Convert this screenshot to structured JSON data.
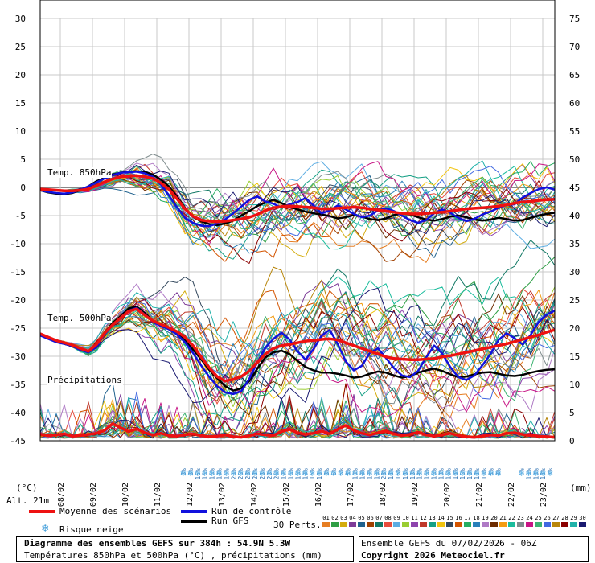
{
  "chart_data": {
    "type": "line",
    "title": "Diagramme des ensembles GEFS sur 384h : 54.9N 5.3W",
    "subtitle": "Températures 850hPa et 500hPa (°C) , précipitations (mm)",
    "run_info": "Ensemble GEFS du 07/02/2026 - 06Z",
    "copyright": "Copyright 2026 Meteociel.fr",
    "altitude": "Alt. 21m",
    "left_axis_unit": "(°C)",
    "right_axis_unit": "(mm)",
    "left_ticks": [
      30,
      25,
      20,
      15,
      10,
      5,
      0,
      -5,
      -10,
      -15,
      -20,
      -25,
      -30,
      -35,
      -40,
      -45
    ],
    "right_ticks": [
      75,
      70,
      65,
      60,
      55,
      50,
      45,
      40,
      35,
      30,
      25,
      20,
      15,
      10,
      5,
      0
    ],
    "ylim": [
      -45,
      30
    ],
    "x_labels": [
      "08/02",
      "09/02",
      "10/02",
      "11/02",
      "12/02",
      "13/02",
      "14/02",
      "15/02",
      "16/02",
      "17/02",
      "18/02",
      "19/02",
      "20/02",
      "21/02",
      "22/02",
      "23/02"
    ],
    "section_labels": {
      "t850": "Temp. 850hPa",
      "t500": "Temp. 500hPa",
      "precip": "Précipitations"
    },
    "x_hours_step": 6,
    "t850_mean": [
      -0.3,
      -0.4,
      -0.5,
      -0.6,
      -0.6,
      -0.5,
      -0.3,
      0.3,
      1.0,
      1.5,
      1.9,
      2.0,
      2.1,
      1.9,
      1.6,
      0.8,
      -0.3,
      -2.0,
      -3.8,
      -5.1,
      -5.8,
      -6.0,
      -6.1,
      -6.0,
      -5.8,
      -5.6,
      -5.3,
      -4.8,
      -4.1,
      -3.6,
      -3.4,
      -3.3,
      -3.4,
      -3.5,
      -3.6,
      -3.8,
      -3.8,
      -3.7,
      -3.6,
      -3.5,
      -3.6,
      -3.8,
      -4.0,
      -4.2,
      -4.4,
      -4.6,
      -4.7,
      -4.7,
      -4.6,
      -4.5,
      -4.4,
      -4.2,
      -4.0,
      -3.8,
      -3.7,
      -3.6,
      -3.5,
      -3.3,
      -3.1,
      -2.8,
      -2.6,
      -2.5,
      -2.3,
      -2.2,
      -2.1
    ],
    "t850_control": [
      -0.5,
      -0.8,
      -1.0,
      -1.1,
      -0.9,
      -0.4,
      0.2,
      0.9,
      1.6,
      2.2,
      2.6,
      2.7,
      2.8,
      2.5,
      1.9,
      0.5,
      -1.4,
      -3.5,
      -5.4,
      -6.3,
      -6.8,
      -6.9,
      -6.4,
      -5.7,
      -4.6,
      -3.4,
      -2.2,
      -1.6,
      -2.5,
      -2.9,
      -3.6,
      -3.0,
      -2.6,
      -1.9,
      -3.2,
      -4.6,
      -4.1,
      -3.2,
      -3.9,
      -4.7,
      -5.3,
      -5.0,
      -4.1,
      -3.7,
      -4.2,
      -5.0,
      -5.8,
      -6.3,
      -5.8,
      -4.6,
      -3.9,
      -4.5,
      -5.4,
      -6.0,
      -5.6,
      -4.8,
      -4.3,
      -3.6,
      -3.1,
      -3.0,
      -1.8,
      -1.0,
      -0.3,
      0.0,
      -0.4
    ],
    "t850_gfs": [
      -0.5,
      -0.9,
      -1.1,
      -1.2,
      -1.0,
      -0.5,
      0.2,
      1.1,
      1.7,
      2.3,
      2.6,
      2.8,
      2.9,
      2.7,
      2.3,
      1.4,
      0.2,
      -1.6,
      -3.6,
      -5.2,
      -6.0,
      -6.5,
      -6.7,
      -6.4,
      -5.9,
      -5.0,
      -4.2,
      -3.3,
      -2.7,
      -2.2,
      -2.8,
      -3.4,
      -3.9,
      -4.3,
      -4.6,
      -4.8,
      -5.1,
      -5.5,
      -5.3,
      -4.9,
      -5.2,
      -5.6,
      -5.8,
      -5.5,
      -4.9,
      -4.6,
      -4.8,
      -5.3,
      -5.7,
      -5.9,
      -5.6,
      -5.2,
      -5.0,
      -5.3,
      -5.7,
      -5.9,
      -5.7,
      -5.4,
      -5.6,
      -5.9,
      -5.8,
      -5.4,
      -5.0,
      -4.7,
      -4.5
    ],
    "t500_mean": [
      -26.0,
      -26.6,
      -27.2,
      -27.6,
      -28.0,
      -28.6,
      -29.1,
      -27.9,
      -25.9,
      -24.4,
      -23.2,
      -22.0,
      -21.6,
      -22.7,
      -23.7,
      -24.3,
      -24.9,
      -25.6,
      -26.6,
      -28.1,
      -30.1,
      -32.0,
      -33.6,
      -34.4,
      -34.1,
      -33.6,
      -32.6,
      -31.1,
      -29.6,
      -28.6,
      -28.1,
      -27.9,
      -27.6,
      -27.3,
      -27.2,
      -27.0,
      -26.9,
      -27.1,
      -27.6,
      -28.1,
      -28.6,
      -29.1,
      -29.6,
      -30.1,
      -30.4,
      -30.5,
      -30.6,
      -30.6,
      -30.5,
      -30.4,
      -30.1,
      -29.9,
      -29.6,
      -29.3,
      -29.0,
      -28.7,
      -28.4,
      -28.1,
      -27.8,
      -27.4,
      -27.0,
      -26.6,
      -26.2,
      -25.7,
      -25.3
    ],
    "t500_control": [
      -26.3,
      -26.9,
      -27.5,
      -27.8,
      -28.2,
      -28.9,
      -29.3,
      -28.3,
      -26.1,
      -24.5,
      -23.1,
      -21.9,
      -21.4,
      -22.6,
      -23.9,
      -24.6,
      -25.2,
      -26.1,
      -27.5,
      -29.4,
      -31.6,
      -33.6,
      -35.3,
      -36.4,
      -36.7,
      -36.2,
      -34.0,
      -31.1,
      -28.5,
      -26.9,
      -25.8,
      -27.0,
      -29.1,
      -30.6,
      -28.7,
      -26.3,
      -25.3,
      -27.8,
      -30.9,
      -32.5,
      -31.7,
      -29.4,
      -28.6,
      -30.3,
      -32.1,
      -33.4,
      -33.7,
      -32.6,
      -30.2,
      -28.1,
      -29.5,
      -31.9,
      -33.7,
      -34.2,
      -33.4,
      -31.6,
      -29.6,
      -27.1,
      -25.9,
      -26.8,
      -27.9,
      -26.2,
      -23.9,
      -22.6,
      -21.9
    ],
    "t500_gfs": [
      -26.2,
      -26.8,
      -27.3,
      -27.8,
      -28.2,
      -28.8,
      -29.3,
      -28.1,
      -25.8,
      -24.1,
      -22.9,
      -21.5,
      -21.2,
      -22.3,
      -23.7,
      -24.5,
      -25.1,
      -25.9,
      -27.2,
      -28.8,
      -30.5,
      -32.4,
      -33.9,
      -35.3,
      -36.1,
      -35.7,
      -34.4,
      -32.2,
      -30.2,
      -29.3,
      -29.0,
      -29.6,
      -30.8,
      -31.9,
      -32.5,
      -32.9,
      -32.9,
      -33.1,
      -33.4,
      -33.8,
      -33.6,
      -33.1,
      -32.7,
      -32.9,
      -33.4,
      -33.8,
      -33.5,
      -32.9,
      -32.5,
      -32.2,
      -32.6,
      -33.2,
      -33.7,
      -33.6,
      -33.2,
      -32.9,
      -32.8,
      -33.1,
      -33.4,
      -33.5,
      -33.3,
      -32.9,
      -32.6,
      -32.4,
      -32.3
    ],
    "precip_mean_mm": [
      0.7,
      0.5,
      0.6,
      0.8,
      0.4,
      0.5,
      0.7,
      0.9,
      1.4,
      2.6,
      1.9,
      1.2,
      1.7,
      1.0,
      0.6,
      0.9,
      0.5,
      0.4,
      0.6,
      0.8,
      0.5,
      0.3,
      0.4,
      0.6,
      0.3,
      0.2,
      0.5,
      0.8,
      0.6,
      0.5,
      1.2,
      1.6,
      1.0,
      0.7,
      0.9,
      1.3,
      0.8,
      1.6,
      2.3,
      1.4,
      0.9,
      0.6,
      1.0,
      1.3,
      0.8,
      0.5,
      0.7,
      1.1,
      0.6,
      0.4,
      0.6,
      0.9,
      0.5,
      0.3,
      0.2,
      0.4,
      0.6,
      0.5,
      0.9,
      1.0,
      0.7,
      0.5,
      0.4,
      0.3,
      0.2
    ],
    "snow_risk": {
      "label": "Risque neige",
      "percent_labels": [
        "3%",
        "3%",
        "16%",
        "16%",
        "16%",
        "13%",
        "16%",
        "23%",
        "26%",
        "23%",
        "23%",
        "23%",
        "23%",
        "26%",
        "19%",
        "16%",
        "16%",
        "10%",
        "16%",
        "10%",
        "3%",
        "6%",
        "6%",
        "3%",
        "10%",
        "10%",
        "10%",
        "10%",
        "23%",
        "13%",
        "16%",
        "13%",
        "13%",
        "13%",
        "16%",
        "16%",
        "13%",
        "16%",
        "13%",
        "16%",
        "10%",
        "13%",
        "10%",
        "3%",
        "3%",
        "6%",
        "10%",
        "13%",
        "13%",
        "3%"
      ],
      "gap_after_index": 45
    },
    "series": [
      {
        "name": "Moyenne des scénarios",
        "color": "#ee1111"
      },
      {
        "name": "Run de contrôle",
        "color": "#1111dd"
      },
      {
        "name": "Run GFS",
        "color": "#000000"
      }
    ],
    "perturbations": {
      "label": "30 Perts.",
      "numbers": [
        "01",
        "02",
        "03",
        "04",
        "05",
        "06",
        "07",
        "08",
        "09",
        "10",
        "11",
        "12",
        "13",
        "14",
        "15",
        "16",
        "17",
        "18",
        "19",
        "20",
        "21",
        "22",
        "23",
        "24",
        "25",
        "26",
        "27",
        "28",
        "29",
        "30"
      ],
      "colors": [
        "#e67e22",
        "#2e9e44",
        "#d4ac0d",
        "#7d3c98",
        "#1f618d",
        "#a04000",
        "#117864",
        "#e74c3c",
        "#5dade2",
        "#9acd32",
        "#8e44ad",
        "#c0392b",
        "#16a085",
        "#f1c40f",
        "#34495e",
        "#d35400",
        "#27ae60",
        "#2980b9",
        "#af7ac5",
        "#6e2c00",
        "#f39c12",
        "#1abc9c",
        "#7f8c8d",
        "#c71585",
        "#3cb371",
        "#4169e1",
        "#b8860b",
        "#8b0000",
        "#20b2aa",
        "#191970"
      ]
    }
  }
}
